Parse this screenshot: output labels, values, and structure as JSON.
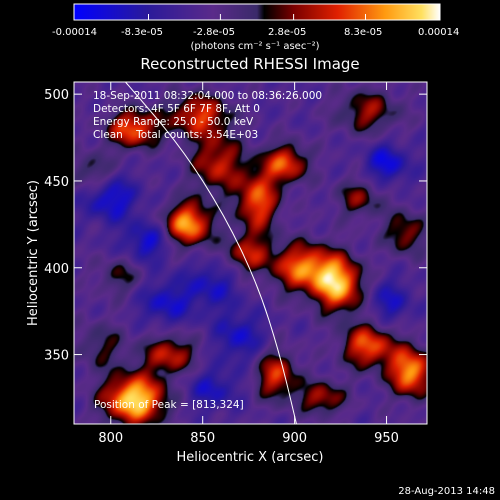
{
  "chart_data": {
    "type": "heatmap",
    "title": "Reconstructed RHESSI Image",
    "xlabel": "Heliocentric X (arcsec)",
    "ylabel": "Heliocentric Y (arcsec)",
    "xlim": [
      780,
      972
    ],
    "ylim": [
      310,
      507
    ],
    "x_ticks": [
      800,
      850,
      900,
      950
    ],
    "y_ticks": [
      350,
      400,
      450,
      500
    ],
    "x_tick_labels": [
      "800",
      "850",
      "900",
      "950"
    ],
    "y_tick_labels": [
      "350",
      "400",
      "450",
      "500"
    ],
    "colorbar": {
      "min": -0.00014,
      "max": 0.00014,
      "tick_values": [
        -0.00014,
        -8.3e-05,
        -2.8e-05,
        2.8e-05,
        8.3e-05,
        0.00014
      ],
      "tick_labels": [
        "-0.00014",
        "-8.3e-05",
        "-2.8e-05",
        "2.8e-05",
        "8.3e-05",
        "0.00014"
      ],
      "units": "(photons cm⁻² s⁻¹ asec⁻²)"
    },
    "annotations": [
      "18-Sep-2011 08:32:04.000 to 08:36:26.000",
      "Detectors: 4F 5F 6F 7F 8F, Att 0",
      "Energy Range: 25.0 - 50.0 keV",
      "Clean    Total counts: 3.54E+03"
    ],
    "peak_label": "Position of Peak = [813,324]",
    "peak": {
      "x": 813,
      "y": 324,
      "value": 0.00014
    },
    "limb_curve": [
      [
        808,
        507
      ],
      [
        838,
        470
      ],
      [
        862,
        430
      ],
      [
        880,
        390
      ],
      [
        892,
        350
      ],
      [
        901,
        310
      ]
    ],
    "sources": [
      {
        "x": 813,
        "y": 324,
        "amp": 1.0,
        "sx": 12,
        "sy": 10
      },
      {
        "x": 832,
        "y": 350,
        "amp": 0.55,
        "sx": 10,
        "sy": 8
      },
      {
        "x": 795,
        "y": 355,
        "amp": 0.3,
        "sx": 10,
        "sy": 10
      },
      {
        "x": 842,
        "y": 425,
        "amp": 0.85,
        "sx": 9,
        "sy": 9
      },
      {
        "x": 858,
        "y": 460,
        "amp": 0.55,
        "sx": 10,
        "sy": 12
      },
      {
        "x": 848,
        "y": 488,
        "amp": 0.6,
        "sx": 12,
        "sy": 9
      },
      {
        "x": 812,
        "y": 480,
        "amp": 0.7,
        "sx": 10,
        "sy": 8
      },
      {
        "x": 880,
        "y": 438,
        "amp": 0.7,
        "sx": 8,
        "sy": 12
      },
      {
        "x": 874,
        "y": 408,
        "amp": 0.5,
        "sx": 9,
        "sy": 8
      },
      {
        "x": 895,
        "y": 460,
        "amp": 0.65,
        "sx": 9,
        "sy": 8
      },
      {
        "x": 905,
        "y": 400,
        "amp": 0.75,
        "sx": 12,
        "sy": 10
      },
      {
        "x": 924,
        "y": 390,
        "amp": 0.85,
        "sx": 9,
        "sy": 11
      },
      {
        "x": 940,
        "y": 355,
        "amp": 0.7,
        "sx": 10,
        "sy": 9
      },
      {
        "x": 963,
        "y": 340,
        "amp": 0.85,
        "sx": 8,
        "sy": 10
      },
      {
        "x": 890,
        "y": 338,
        "amp": 0.6,
        "sx": 8,
        "sy": 10
      },
      {
        "x": 915,
        "y": 325,
        "amp": 0.5,
        "sx": 9,
        "sy": 7
      },
      {
        "x": 940,
        "y": 490,
        "amp": 0.45,
        "sx": 12,
        "sy": 9
      },
      {
        "x": 960,
        "y": 420,
        "amp": 0.45,
        "sx": 8,
        "sy": 9
      },
      {
        "x": 790,
        "y": 455,
        "amp": 0.35,
        "sx": 8,
        "sy": 8
      },
      {
        "x": 935,
        "y": 440,
        "amp": 0.4,
        "sx": 9,
        "sy": 8
      },
      {
        "x": 805,
        "y": 395,
        "amp": 0.3,
        "sx": 9,
        "sy": 8
      }
    ],
    "negatives": [
      {
        "x": 800,
        "y": 440,
        "amp": 0.55,
        "sx": 10,
        "sy": 9
      },
      {
        "x": 820,
        "y": 415,
        "amp": 0.5,
        "sx": 9,
        "sy": 8
      },
      {
        "x": 830,
        "y": 380,
        "amp": 0.45,
        "sx": 10,
        "sy": 9
      },
      {
        "x": 855,
        "y": 390,
        "amp": 0.4,
        "sx": 10,
        "sy": 10
      },
      {
        "x": 870,
        "y": 360,
        "amp": 0.45,
        "sx": 9,
        "sy": 10
      },
      {
        "x": 950,
        "y": 460,
        "amp": 0.55,
        "sx": 8,
        "sy": 8
      },
      {
        "x": 952,
        "y": 380,
        "amp": 0.4,
        "sx": 8,
        "sy": 9
      },
      {
        "x": 855,
        "y": 330,
        "amp": 0.4,
        "sx": 10,
        "sy": 8
      }
    ],
    "colormap": [
      [
        0.0,
        "#0000ff"
      ],
      [
        0.2,
        "#2a1a9a"
      ],
      [
        0.38,
        "#5a2a8a"
      ],
      [
        0.5,
        "#3a2a6a"
      ],
      [
        0.52,
        "#000000"
      ],
      [
        0.6,
        "#7a0000"
      ],
      [
        0.72,
        "#e02000"
      ],
      [
        0.85,
        "#ff9a10"
      ],
      [
        0.95,
        "#ffe060"
      ],
      [
        1.0,
        "#ffffff"
      ]
    ]
  },
  "footer": {
    "timestamp": "28-Aug-2013 14:48"
  }
}
